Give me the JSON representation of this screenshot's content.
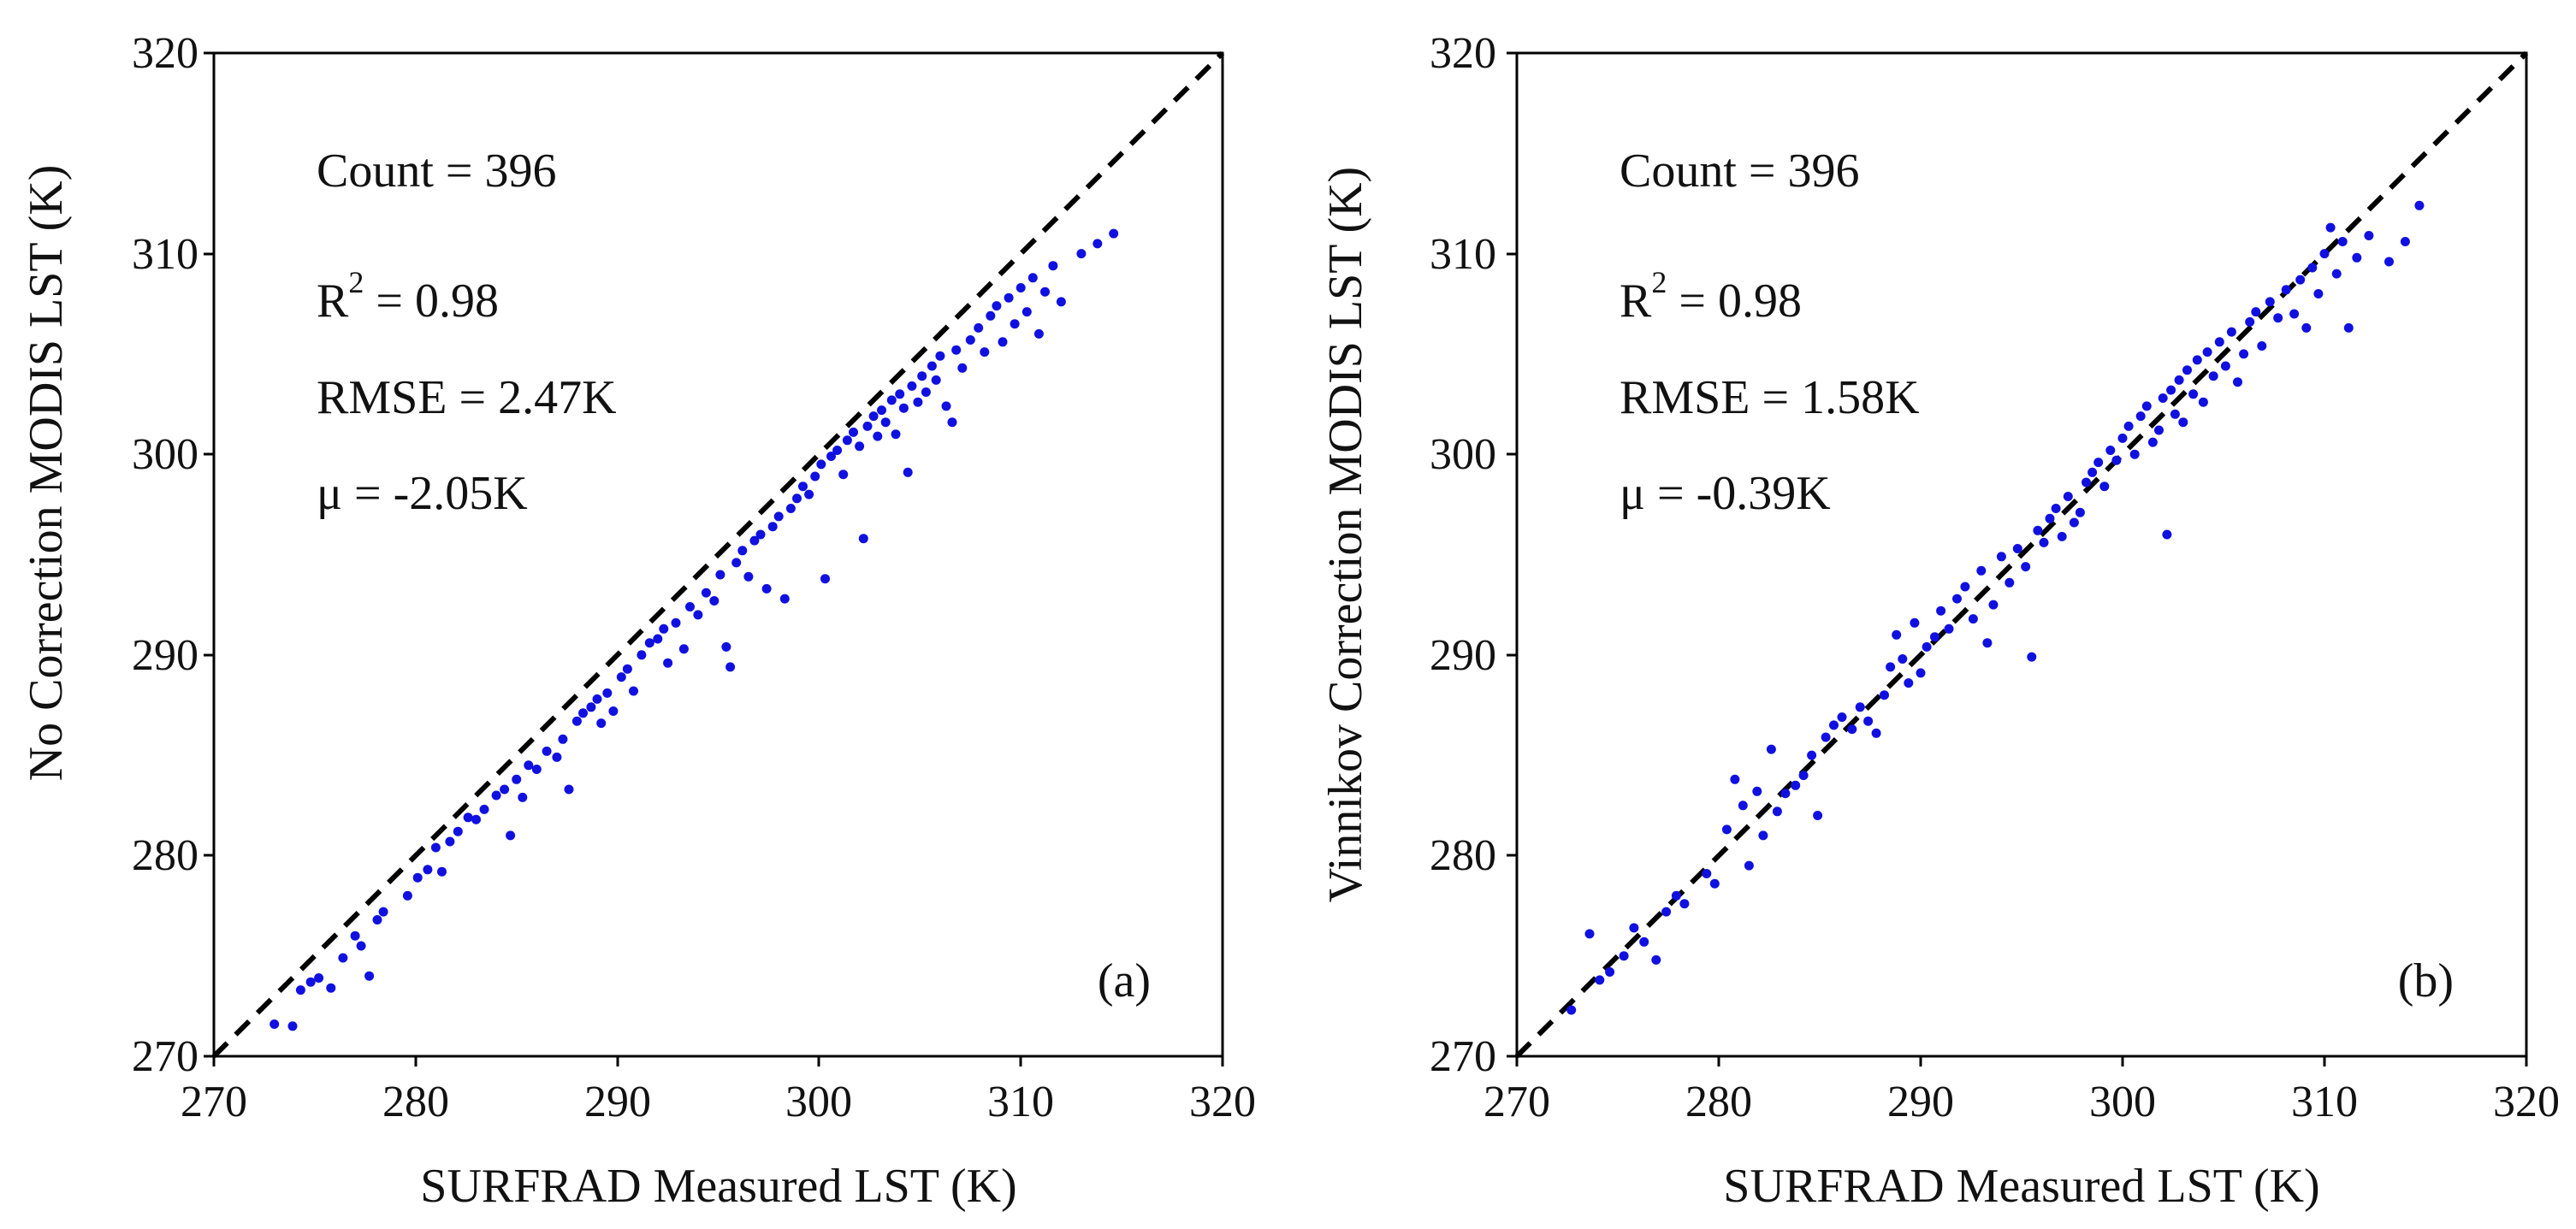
{
  "chart_data": [
    {
      "type": "scatter",
      "panel_label": "(a)",
      "xlabel": "SURFRAD Measured LST (K)",
      "ylabel": "No Correction MODIS LST (K)",
      "xlim": [
        270,
        320
      ],
      "ylim": [
        270,
        320
      ],
      "xticks": [
        "270",
        "280",
        "290",
        "300",
        "310",
        "320"
      ],
      "yticks": [
        "270",
        "280",
        "290",
        "300",
        "310",
        "320"
      ],
      "reference_line": "1:1 dashed",
      "stats": {
        "count": "Count = 396",
        "r2_prefix": "R",
        "r2_sup": "2",
        "r2_value": " = 0.98",
        "rmse": "RMSE = 2.47K",
        "bias": "μ = -2.05K"
      },
      "point_color": "#1010e0",
      "count": 396,
      "bias": -2.05,
      "rmse": 2.47,
      "points": [
        [
          273.0,
          271.6
        ],
        [
          273.9,
          271.5
        ],
        [
          274.3,
          273.3
        ],
        [
          274.8,
          273.7
        ],
        [
          275.2,
          273.9
        ],
        [
          275.8,
          273.4
        ],
        [
          276.4,
          274.9
        ],
        [
          277.0,
          276.0
        ],
        [
          277.3,
          275.5
        ],
        [
          277.7,
          274.0
        ],
        [
          278.1,
          276.8
        ],
        [
          278.4,
          277.2
        ],
        [
          279.6,
          278.0
        ],
        [
          280.1,
          278.9
        ],
        [
          280.6,
          279.3
        ],
        [
          281.0,
          280.4
        ],
        [
          281.3,
          279.2
        ],
        [
          281.7,
          280.7
        ],
        [
          282.1,
          281.2
        ],
        [
          282.6,
          281.9
        ],
        [
          283.0,
          281.8
        ],
        [
          283.4,
          282.3
        ],
        [
          284.0,
          283.0
        ],
        [
          284.4,
          283.3
        ],
        [
          284.7,
          281.0
        ],
        [
          285.0,
          283.8
        ],
        [
          285.3,
          282.9
        ],
        [
          285.6,
          284.5
        ],
        [
          286.0,
          284.3
        ],
        [
          286.5,
          285.2
        ],
        [
          287.0,
          284.9
        ],
        [
          287.3,
          285.8
        ],
        [
          287.6,
          283.3
        ],
        [
          288.0,
          286.7
        ],
        [
          288.3,
          287.1
        ],
        [
          288.7,
          287.4
        ],
        [
          289.0,
          287.8
        ],
        [
          289.2,
          286.6
        ],
        [
          289.5,
          288.1
        ],
        [
          289.8,
          287.2
        ],
        [
          290.2,
          288.9
        ],
        [
          290.5,
          289.3
        ],
        [
          290.8,
          288.2
        ],
        [
          291.2,
          290.0
        ],
        [
          291.6,
          290.6
        ],
        [
          292.0,
          290.8
        ],
        [
          292.3,
          291.3
        ],
        [
          292.5,
          289.6
        ],
        [
          292.9,
          291.6
        ],
        [
          293.3,
          290.3
        ],
        [
          293.6,
          292.4
        ],
        [
          294.0,
          292.0
        ],
        [
          294.4,
          293.1
        ],
        [
          294.8,
          292.7
        ],
        [
          295.1,
          294.0
        ],
        [
          295.4,
          290.4
        ],
        [
          295.6,
          289.4
        ],
        [
          295.9,
          294.6
        ],
        [
          296.2,
          295.2
        ],
        [
          296.5,
          293.9
        ],
        [
          296.8,
          295.7
        ],
        [
          297.1,
          296.0
        ],
        [
          297.4,
          293.3
        ],
        [
          297.7,
          296.4
        ],
        [
          298.0,
          296.9
        ],
        [
          298.3,
          292.8
        ],
        [
          298.6,
          297.3
        ],
        [
          298.9,
          297.8
        ],
        [
          299.2,
          298.4
        ],
        [
          299.5,
          298.0
        ],
        [
          299.8,
          298.9
        ],
        [
          300.1,
          299.5
        ],
        [
          300.3,
          293.8
        ],
        [
          300.6,
          299.9
        ],
        [
          300.9,
          300.2
        ],
        [
          301.2,
          299.0
        ],
        [
          301.4,
          300.7
        ],
        [
          301.7,
          301.1
        ],
        [
          302.0,
          300.4
        ],
        [
          302.2,
          295.8
        ],
        [
          302.4,
          301.4
        ],
        [
          302.7,
          301.9
        ],
        [
          302.9,
          300.9
        ],
        [
          303.1,
          302.2
        ],
        [
          303.3,
          301.6
        ],
        [
          303.6,
          302.7
        ],
        [
          303.8,
          301.0
        ],
        [
          304.0,
          303.0
        ],
        [
          304.2,
          302.3
        ],
        [
          304.4,
          299.1
        ],
        [
          304.6,
          303.4
        ],
        [
          304.9,
          302.6
        ],
        [
          305.1,
          303.9
        ],
        [
          305.3,
          303.1
        ],
        [
          305.6,
          304.4
        ],
        [
          305.8,
          303.7
        ],
        [
          306.0,
          304.9
        ],
        [
          306.3,
          302.4
        ],
        [
          306.6,
          301.6
        ],
        [
          306.8,
          305.2
        ],
        [
          307.1,
          304.3
        ],
        [
          307.5,
          305.7
        ],
        [
          307.9,
          306.3
        ],
        [
          308.2,
          305.1
        ],
        [
          308.5,
          306.9
        ],
        [
          308.8,
          307.4
        ],
        [
          309.1,
          305.6
        ],
        [
          309.4,
          307.8
        ],
        [
          309.7,
          306.5
        ],
        [
          310.0,
          308.3
        ],
        [
          310.3,
          307.1
        ],
        [
          310.6,
          308.8
        ],
        [
          310.9,
          306.0
        ],
        [
          311.2,
          308.1
        ],
        [
          311.6,
          309.4
        ],
        [
          312.0,
          307.6
        ],
        [
          313.0,
          310.0
        ],
        [
          313.8,
          310.5
        ],
        [
          314.6,
          311.0
        ]
      ]
    },
    {
      "type": "scatter",
      "panel_label": "(b)",
      "xlabel": "SURFRAD Measured LST (K)",
      "ylabel": "Vinnikov Correction MODIS LST (K)",
      "xlim": [
        270,
        320
      ],
      "ylim": [
        270,
        320
      ],
      "xticks": [
        "270",
        "280",
        "290",
        "300",
        "310",
        "320"
      ],
      "yticks": [
        "270",
        "280",
        "290",
        "300",
        "310",
        "320"
      ],
      "reference_line": "1:1 dashed",
      "stats": {
        "count": "Count = 396",
        "r2_prefix": "R",
        "r2_sup": "2",
        "r2_value": " = 0.98",
        "rmse": "RMSE = 1.58K",
        "bias": "μ = -0.39K"
      },
      "point_color": "#1010e0",
      "count": 396,
      "bias": -0.39,
      "rmse": 1.58,
      "points": [
        [
          272.7,
          272.3
        ],
        [
          273.6,
          276.1
        ],
        [
          274.1,
          273.8
        ],
        [
          274.6,
          274.2
        ],
        [
          275.3,
          275.0
        ],
        [
          275.8,
          276.4
        ],
        [
          276.3,
          275.7
        ],
        [
          276.9,
          274.8
        ],
        [
          277.4,
          277.2
        ],
        [
          277.9,
          278.0
        ],
        [
          278.3,
          277.6
        ],
        [
          279.4,
          279.1
        ],
        [
          279.8,
          278.6
        ],
        [
          280.4,
          281.3
        ],
        [
          280.8,
          283.8
        ],
        [
          281.2,
          282.5
        ],
        [
          281.5,
          279.5
        ],
        [
          281.9,
          283.2
        ],
        [
          282.2,
          281.0
        ],
        [
          282.6,
          285.3
        ],
        [
          282.9,
          282.2
        ],
        [
          283.3,
          283.1
        ],
        [
          283.8,
          283.5
        ],
        [
          284.2,
          284.0
        ],
        [
          284.6,
          285.0
        ],
        [
          284.9,
          282.0
        ],
        [
          285.3,
          285.9
        ],
        [
          285.7,
          286.5
        ],
        [
          286.1,
          286.9
        ],
        [
          286.6,
          286.3
        ],
        [
          287.0,
          287.4
        ],
        [
          287.4,
          286.7
        ],
        [
          287.8,
          286.1
        ],
        [
          288.2,
          288.0
        ],
        [
          288.5,
          289.4
        ],
        [
          288.8,
          291.0
        ],
        [
          289.1,
          289.8
        ],
        [
          289.4,
          288.6
        ],
        [
          289.7,
          291.6
        ],
        [
          290.0,
          289.1
        ],
        [
          290.3,
          290.4
        ],
        [
          290.7,
          290.9
        ],
        [
          291.0,
          292.2
        ],
        [
          291.4,
          291.3
        ],
        [
          291.8,
          292.8
        ],
        [
          292.2,
          293.4
        ],
        [
          292.6,
          291.8
        ],
        [
          293.0,
          294.2
        ],
        [
          293.3,
          290.6
        ],
        [
          293.6,
          292.5
        ],
        [
          294.0,
          294.9
        ],
        [
          294.4,
          293.6
        ],
        [
          294.8,
          295.3
        ],
        [
          295.2,
          294.4
        ],
        [
          295.5,
          289.9
        ],
        [
          295.8,
          296.2
        ],
        [
          296.1,
          295.6
        ],
        [
          296.4,
          296.8
        ],
        [
          296.7,
          297.3
        ],
        [
          297.0,
          295.9
        ],
        [
          297.3,
          297.9
        ],
        [
          297.6,
          296.6
        ],
        [
          297.9,
          297.1
        ],
        [
          298.2,
          298.6
        ],
        [
          298.5,
          299.1
        ],
        [
          298.8,
          299.6
        ],
        [
          299.1,
          298.4
        ],
        [
          299.4,
          300.2
        ],
        [
          299.7,
          299.7
        ],
        [
          300.0,
          300.8
        ],
        [
          300.3,
          301.4
        ],
        [
          300.6,
          300.0
        ],
        [
          300.9,
          301.9
        ],
        [
          301.2,
          302.4
        ],
        [
          301.5,
          300.6
        ],
        [
          301.8,
          301.2
        ],
        [
          302.0,
          302.8
        ],
        [
          302.2,
          296.0
        ],
        [
          302.4,
          303.2
        ],
        [
          302.6,
          302.0
        ],
        [
          302.8,
          303.7
        ],
        [
          303.0,
          301.6
        ],
        [
          303.2,
          304.2
        ],
        [
          303.5,
          303.0
        ],
        [
          303.7,
          304.7
        ],
        [
          304.0,
          302.6
        ],
        [
          304.2,
          305.1
        ],
        [
          304.5,
          303.9
        ],
        [
          304.8,
          305.6
        ],
        [
          305.1,
          304.4
        ],
        [
          305.4,
          306.1
        ],
        [
          305.7,
          303.6
        ],
        [
          306.0,
          305.0
        ],
        [
          306.3,
          306.6
        ],
        [
          306.6,
          307.1
        ],
        [
          306.9,
          305.4
        ],
        [
          307.3,
          307.6
        ],
        [
          307.7,
          306.8
        ],
        [
          308.1,
          308.2
        ],
        [
          308.5,
          307.0
        ],
        [
          308.8,
          308.7
        ],
        [
          309.1,
          306.3
        ],
        [
          309.4,
          309.3
        ],
        [
          309.7,
          308.0
        ],
        [
          310.0,
          310.0
        ],
        [
          310.3,
          311.3
        ],
        [
          310.6,
          309.0
        ],
        [
          310.9,
          310.6
        ],
        [
          311.2,
          306.3
        ],
        [
          311.6,
          309.8
        ],
        [
          312.2,
          310.9
        ],
        [
          313.2,
          309.6
        ],
        [
          314.0,
          310.6
        ],
        [
          314.7,
          312.4
        ]
      ]
    }
  ]
}
